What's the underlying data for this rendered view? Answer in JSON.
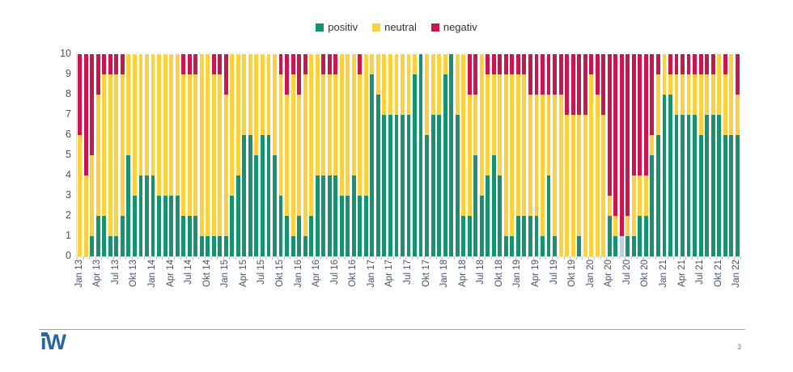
{
  "page": {
    "page_number": "3",
    "logo_text": "iW"
  },
  "colors": {
    "positiv": "#18926E",
    "neutral": "#FCD13B",
    "negativ": "#C8174F",
    "pale_extra": "#BDCFE2",
    "axis_text": "#44546A",
    "legend_text": "#333333",
    "logo_blue": "#2766A3",
    "divider": "#A6A6A6",
    "tick": "#BFBFBF"
  },
  "legend": {
    "items": [
      {
        "label": "positiv",
        "color": "#18926E"
      },
      {
        "label": "neutral",
        "color": "#FCD13B"
      },
      {
        "label": "negativ",
        "color": "#C8174F"
      }
    ]
  },
  "axes": {
    "y_tick_labels": [
      "0",
      "1",
      "2",
      "3",
      "4",
      "5",
      "6",
      "7",
      "8",
      "9",
      "10"
    ],
    "x_tick_labels": [
      "Jan 13",
      "Apr 13",
      "Jul 13",
      "Okt 13",
      "Jan 14",
      "Apr 14",
      "Jul 14",
      "Okt 14",
      "Jan 15",
      "Apr 15",
      "Jul 15",
      "Okt 15",
      "Jan 16",
      "Apr 16",
      "Jul 16",
      "Okt 16",
      "Jan 17",
      "Apr 17",
      "Jul 17",
      "Okt 17",
      "Jan 18",
      "Apr 18",
      "Jul 18",
      "Okt 18",
      "Jan 19",
      "Apr 19",
      "Jul 19",
      "Okt 19",
      "Jan 20",
      "Apr 20",
      "Jul 20",
      "Okt 20",
      "Jan 21",
      "Apr 21",
      "Jul 21",
      "Okt 21",
      "Jan 22"
    ]
  },
  "chart_data": {
    "type": "bar",
    "stacked": true,
    "ylim": [
      0,
      10
    ],
    "grid": false,
    "legend_position": "top",
    "categories": [
      "Jan 13",
      "Feb 13",
      "Mär 13",
      "Apr 13",
      "Mai 13",
      "Jun 13",
      "Jul 13",
      "Aug 13",
      "Sep 13",
      "Okt 13",
      "Nov 13",
      "Dez 13",
      "Jan 14",
      "Feb 14",
      "Mär 14",
      "Apr 14",
      "Mai 14",
      "Jun 14",
      "Jul 14",
      "Aug 14",
      "Sep 14",
      "Okt 14",
      "Nov 14",
      "Dez 14",
      "Jan 15",
      "Feb 15",
      "Mär 15",
      "Apr 15",
      "Mai 15",
      "Jun 15",
      "Jul 15",
      "Aug 15",
      "Sep 15",
      "Okt 15",
      "Nov 15",
      "Dez 15",
      "Jan 16",
      "Feb 16",
      "Mär 16",
      "Apr 16",
      "Mai 16",
      "Jun 16",
      "Jul 16",
      "Aug 16",
      "Sep 16",
      "Okt 16",
      "Nov 16",
      "Dez 16",
      "Jan 17",
      "Feb 17",
      "Mär 17",
      "Apr 17",
      "Mai 17",
      "Jun 17",
      "Jul 17",
      "Aug 17",
      "Sep 17",
      "Okt 17",
      "Nov 17",
      "Dez 17",
      "Jan 18",
      "Feb 18",
      "Mär 18",
      "Apr 18",
      "Mai 18",
      "Jun 18",
      "Jul 18",
      "Aug 18",
      "Sep 18",
      "Okt 18",
      "Nov 18",
      "Dez 18",
      "Jan 19",
      "Feb 19",
      "Mär 19",
      "Apr 19",
      "Mai 19",
      "Jun 19",
      "Jul 19",
      "Aug 19",
      "Sep 19",
      "Okt 19",
      "Nov 19",
      "Dez 19",
      "Jan 20",
      "Feb 20",
      "Mär 20",
      "Apr 20",
      "Mai 20",
      "Jun 20",
      "Jul 20",
      "Aug 20",
      "Sep 20",
      "Okt 20",
      "Nov 20",
      "Dez 20",
      "Jan 21",
      "Feb 21",
      "Mär 21",
      "Apr 21",
      "Mai 21",
      "Jun 21",
      "Jul 21",
      "Aug 21",
      "Sep 21",
      "Okt 21",
      "Nov 21",
      "Dez 21",
      "Jan 22"
    ],
    "series": [
      {
        "name": "positiv",
        "color": "#18926E",
        "values": [
          0,
          0,
          1,
          2,
          2,
          1,
          1,
          2,
          5,
          3,
          4,
          4,
          4,
          3,
          3,
          3,
          3,
          2,
          2,
          2,
          1,
          1,
          1,
          1,
          1,
          3,
          4,
          6,
          6,
          5,
          6,
          6,
          5,
          3,
          2,
          1,
          2,
          1,
          2,
          4,
          4,
          4,
          4,
          3,
          3,
          4,
          3,
          3,
          9,
          8,
          7,
          7,
          7,
          7,
          7,
          9,
          10,
          6,
          7,
          7,
          9,
          10,
          7,
          2,
          2,
          5,
          3,
          4,
          5,
          4,
          1,
          1,
          2,
          2,
          2,
          2,
          1,
          4,
          1,
          0,
          0,
          0,
          1,
          0,
          0,
          0,
          0,
          2,
          1,
          0,
          1,
          1,
          2,
          2,
          5,
          6,
          8,
          8,
          7,
          7,
          7,
          7,
          6,
          7,
          7,
          7,
          6,
          6,
          6
        ]
      },
      {
        "name": "neutral",
        "color": "#FCD13B",
        "values": [
          6,
          4,
          4,
          6,
          7,
          8,
          8,
          7,
          5,
          7,
          6,
          6,
          6,
          7,
          7,
          7,
          7,
          7,
          7,
          7,
          9,
          9,
          8,
          8,
          7,
          7,
          6,
          4,
          4,
          5,
          4,
          4,
          5,
          6,
          6,
          8,
          6,
          8,
          8,
          6,
          5,
          5,
          5,
          7,
          7,
          6,
          6,
          7,
          1,
          2,
          3,
          3,
          3,
          3,
          3,
          1,
          0,
          4,
          3,
          3,
          1,
          0,
          3,
          8,
          6,
          3,
          7,
          5,
          4,
          5,
          8,
          8,
          7,
          7,
          6,
          6,
          7,
          4,
          7,
          8,
          7,
          7,
          6,
          7,
          9,
          8,
          7,
          1,
          1,
          0,
          1,
          3,
          2,
          2,
          1,
          3,
          2,
          1,
          2,
          2,
          2,
          2,
          3,
          2,
          2,
          3,
          3,
          4,
          2
        ]
      },
      {
        "name": "negativ",
        "color": "#C8174F",
        "values": [
          4,
          6,
          5,
          2,
          1,
          1,
          1,
          1,
          0,
          0,
          0,
          0,
          0,
          0,
          0,
          0,
          0,
          1,
          1,
          1,
          0,
          0,
          1,
          1,
          2,
          0,
          0,
          0,
          0,
          0,
          0,
          0,
          0,
          1,
          2,
          1,
          2,
          1,
          0,
          0,
          1,
          1,
          1,
          0,
          0,
          0,
          1,
          0,
          0,
          0,
          0,
          0,
          0,
          0,
          0,
          0,
          0,
          0,
          0,
          0,
          0,
          0,
          0,
          0,
          2,
          2,
          0,
          1,
          1,
          1,
          1,
          1,
          1,
          1,
          2,
          2,
          2,
          2,
          2,
          2,
          3,
          3,
          3,
          3,
          1,
          2,
          3,
          7,
          8,
          9,
          8,
          6,
          6,
          6,
          4,
          1,
          0,
          1,
          1,
          1,
          1,
          1,
          1,
          1,
          1,
          0,
          1,
          0,
          2
        ]
      }
    ],
    "extra_pale_segment": {
      "category": "Jun 20",
      "category_index": 89,
      "value": 1,
      "color": "#BDCFE2"
    }
  }
}
